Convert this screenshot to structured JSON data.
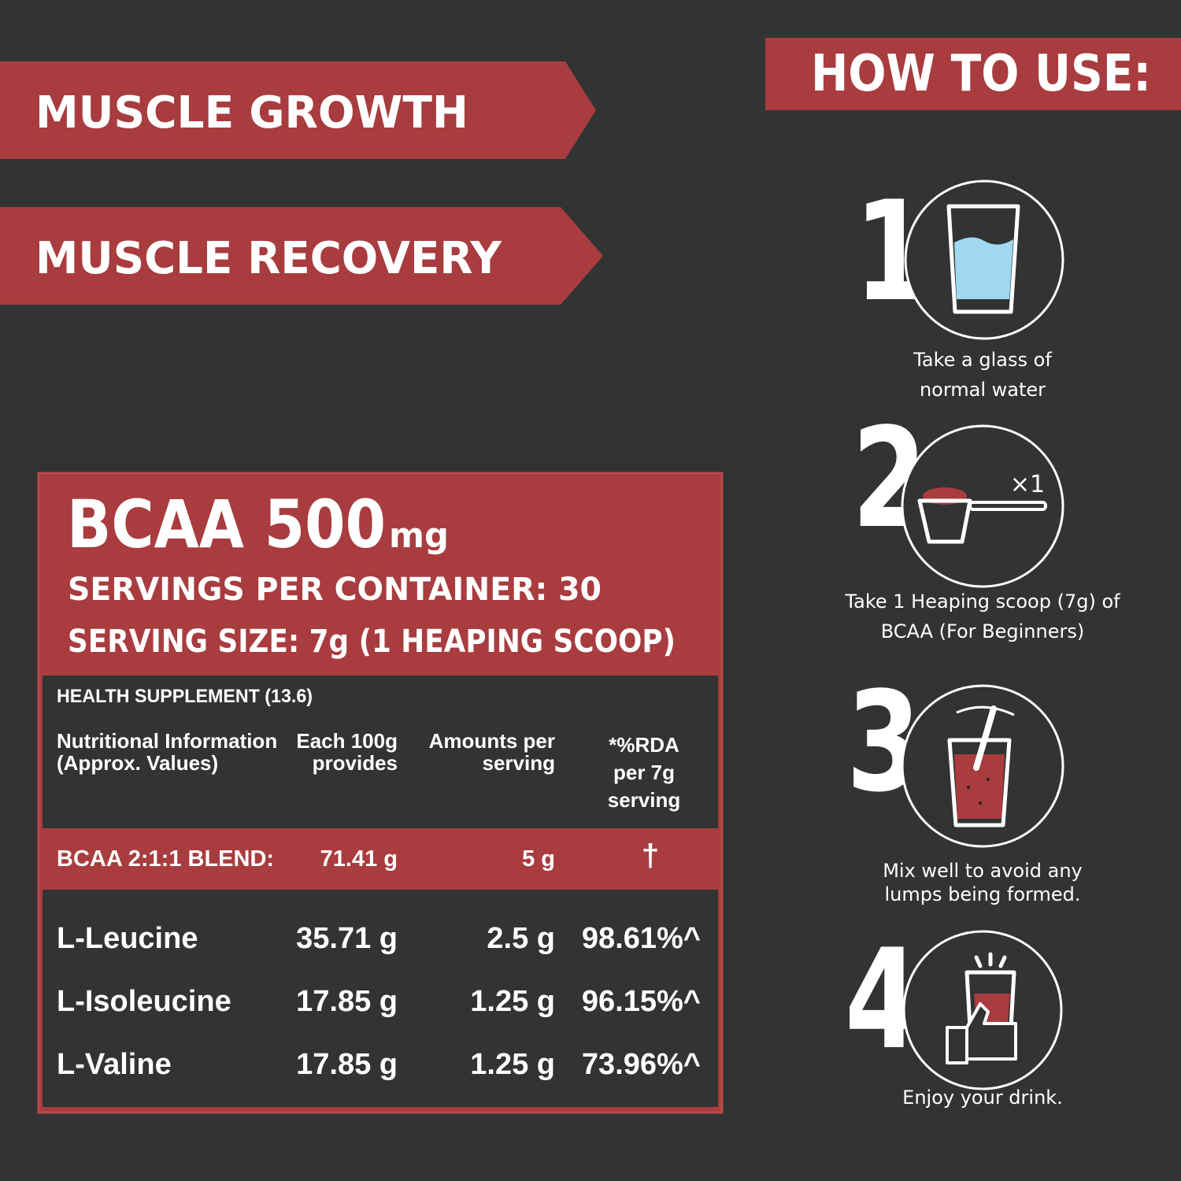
{
  "banners": [
    "MUSCLE GROWTH",
    "MUSCLE RECOVERY"
  ],
  "how_to_use": {
    "title": "HOW TO USE:",
    "steps": [
      {
        "number": "1",
        "text": [
          "Take a glass of",
          "normal water"
        ]
      },
      {
        "number": "2",
        "badge": "×1",
        "text": [
          "Take 1 Heaping scoop (7g) of",
          "BCAA (For Beginners)"
        ]
      },
      {
        "number": "3",
        "text": [
          "Mix well to avoid any",
          "lumps being formed."
        ]
      },
      {
        "number": "4",
        "text": [
          "Enjoy your drink."
        ]
      }
    ]
  },
  "panel": {
    "title": "BCAA 500",
    "title_unit": "mg",
    "servings": "SERVINGS PER CONTAINER: 30",
    "serving_size": "SERVING SIZE: 7g (1 HEAPING SCOOP)",
    "table": {
      "caption": "HEALTH SUPPLEMENT (13.6)",
      "headers": [
        [
          "Nutritional Information",
          "(Approx. Values)"
        ],
        [
          "Each 100g",
          "provides"
        ],
        [
          "Amounts per",
          "serving"
        ],
        [
          "*%RDA",
          "per 7g",
          "serving"
        ]
      ],
      "blend": [
        "BCAA  2:1:1 BLEND:",
        "71.41 g",
        "5 g",
        "†"
      ],
      "rows": [
        [
          "L-Leucine",
          "35.71 g",
          "2.5 g",
          "98.61%^"
        ],
        [
          "L-Isoleucine",
          "17.85 g",
          "1.25 g",
          "96.15%^"
        ],
        [
          "L-Valine",
          "17.85 g",
          "1.25 g",
          "73.96%^"
        ]
      ]
    }
  }
}
